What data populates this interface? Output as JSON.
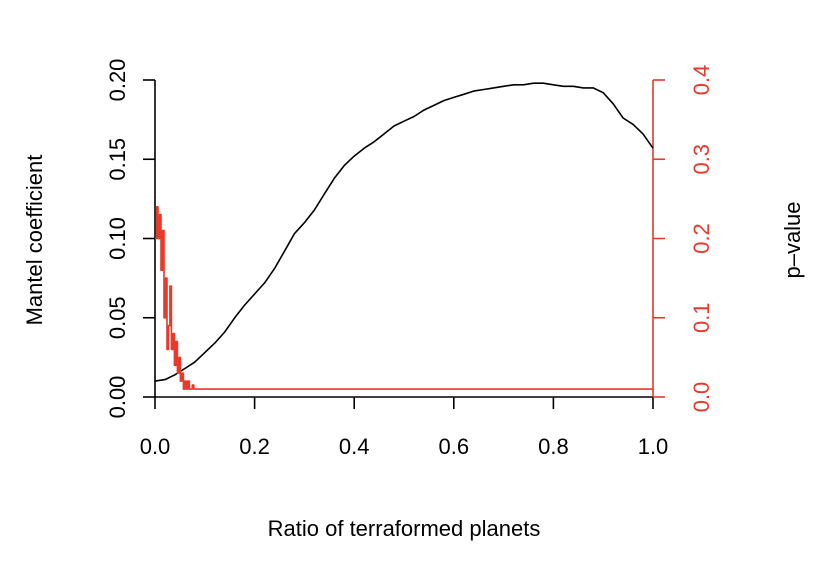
{
  "colors": {
    "primary": "#000000",
    "secondary": "#e8392a"
  },
  "chart_data": {
    "type": "line",
    "xlabel": "Ratio of terraformed planets",
    "ylabel": "Mantel coefficient",
    "y2label": "p–value",
    "xlim": [
      0.0,
      1.0
    ],
    "ylim": [
      0.0,
      0.2
    ],
    "y2lim": [
      0.0,
      0.4
    ],
    "x_ticks": [
      "0.0",
      "0.2",
      "0.4",
      "0.6",
      "0.8",
      "1.0"
    ],
    "y_ticks": [
      "0.00",
      "0.05",
      "0.10",
      "0.15",
      "0.20"
    ],
    "y2_ticks": [
      "0.0",
      "0.1",
      "0.2",
      "0.3",
      "0.4"
    ],
    "series": [
      {
        "axis": "left",
        "x": [
          0.0,
          0.02,
          0.04,
          0.06,
          0.08,
          0.1,
          0.12,
          0.14,
          0.16,
          0.18,
          0.2,
          0.22,
          0.24,
          0.26,
          0.28,
          0.3,
          0.32,
          0.34,
          0.36,
          0.38,
          0.4,
          0.42,
          0.44,
          0.46,
          0.48,
          0.5,
          0.52,
          0.54,
          0.56,
          0.58,
          0.6,
          0.62,
          0.64,
          0.66,
          0.68,
          0.7,
          0.72,
          0.74,
          0.76,
          0.78,
          0.8,
          0.82,
          0.84,
          0.86,
          0.88,
          0.9,
          0.92,
          0.94,
          0.96,
          0.98,
          1.0
        ],
        "values": [
          0.01,
          0.011,
          0.014,
          0.018,
          0.022,
          0.028,
          0.034,
          0.041,
          0.05,
          0.058,
          0.065,
          0.072,
          0.081,
          0.092,
          0.103,
          0.11,
          0.118,
          0.128,
          0.138,
          0.146,
          0.152,
          0.157,
          0.161,
          0.166,
          0.171,
          0.174,
          0.177,
          0.181,
          0.184,
          0.187,
          0.189,
          0.191,
          0.193,
          0.194,
          0.195,
          0.196,
          0.197,
          0.197,
          0.198,
          0.198,
          0.197,
          0.196,
          0.196,
          0.195,
          0.195,
          0.192,
          0.185,
          0.176,
          0.172,
          0.166,
          0.157
        ]
      },
      {
        "axis": "right",
        "x": [
          0.0,
          0.003,
          0.006,
          0.009,
          0.012,
          0.015,
          0.018,
          0.021,
          0.024,
          0.027,
          0.03,
          0.033,
          0.036,
          0.039,
          0.042,
          0.045,
          0.048,
          0.051,
          0.054,
          0.057,
          0.06,
          0.063,
          0.066,
          0.069,
          0.072,
          0.075,
          0.078,
          0.081,
          0.085,
          0.09,
          0.095,
          0.1,
          0.2,
          0.4,
          0.6,
          0.8,
          1.0
        ],
        "values": [
          0.2,
          0.24,
          0.2,
          0.23,
          0.16,
          0.21,
          0.1,
          0.15,
          0.06,
          0.09,
          0.14,
          0.06,
          0.08,
          0.04,
          0.07,
          0.03,
          0.05,
          0.02,
          0.03,
          0.01,
          0.02,
          0.01,
          0.02,
          0.01,
          0.01,
          0.015,
          0.01,
          0.01,
          0.01,
          0.01,
          0.01,
          0.01,
          0.01,
          0.01,
          0.01,
          0.01,
          0.01
        ]
      }
    ]
  }
}
